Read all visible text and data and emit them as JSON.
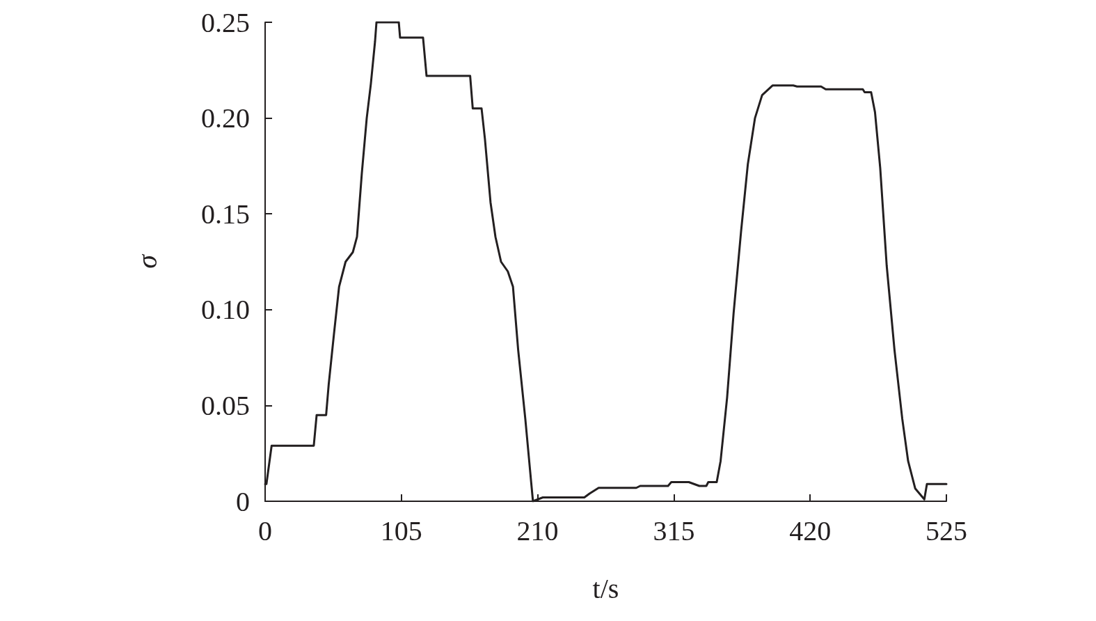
{
  "chart_data": {
    "type": "line",
    "xlabel": "t/s",
    "ylabel": "σ",
    "xlim": [
      0,
      525
    ],
    "xticks": [
      0,
      105,
      210,
      315,
      420,
      525
    ],
    "ylim": [
      0,
      0.25
    ],
    "yticks": [
      0,
      0.05,
      {
        "value": 0.1,
        "label": "0.10"
      },
      0.15,
      {
        "value": 0.2,
        "label": "0.20"
      },
      0.25
    ],
    "marker": "none",
    "line_style": "solid",
    "series": [
      {
        "color": "#231f20",
        "x": [
          0,
          1,
          5,
          37.5,
          39.7,
          47,
          49,
          53,
          57,
          62,
          67.6,
          70.8,
          74.5,
          78.3,
          81.5,
          84.7,
          85.8,
          103,
          104,
          121.7,
          124.4,
          158,
          160,
          166.8,
          169.4,
          173.7,
          177.5,
          181.8,
          187,
          191,
          195,
          200.5,
          205,
          206.4,
          214,
          246,
          250,
          257,
          286,
          289,
          310.5,
          313,
          326.5,
          334.6,
          340,
          341.5,
          348,
          351,
          356,
          361,
          366.8,
          372,
          377.5,
          383,
          391,
          407,
          409.9,
          428.4,
          432,
          460.6,
          462,
          467,
          470,
          474,
          479,
          485,
          491,
          495.5,
          501,
          508,
          510,
          525
        ],
        "values": [
          0.009,
          0.009,
          0.029,
          0.029,
          0.045,
          0.045,
          0.061,
          0.087,
          0.112,
          0.125,
          0.13,
          0.138,
          0.171,
          0.2,
          0.218,
          0.24,
          0.25,
          0.25,
          0.242,
          0.242,
          0.222,
          0.222,
          0.205,
          0.205,
          0.189,
          0.156,
          0.138,
          0.125,
          0.12,
          0.112,
          0.079,
          0.043,
          0.01,
          0,
          0.002,
          0.002,
          0.004,
          0.007,
          0.007,
          0.008,
          0.008,
          0.01,
          0.01,
          0.008,
          0.008,
          0.01,
          0.01,
          0.021,
          0.054,
          0.098,
          0.141,
          0.176,
          0.2,
          0.212,
          0.217,
          0.217,
          0.2165,
          0.2165,
          0.215,
          0.215,
          0.2135,
          0.2135,
          0.203,
          0.174,
          0.123,
          0.079,
          0.043,
          0.021,
          0.0066,
          0.001,
          0.009,
          0.009
        ]
      }
    ]
  }
}
